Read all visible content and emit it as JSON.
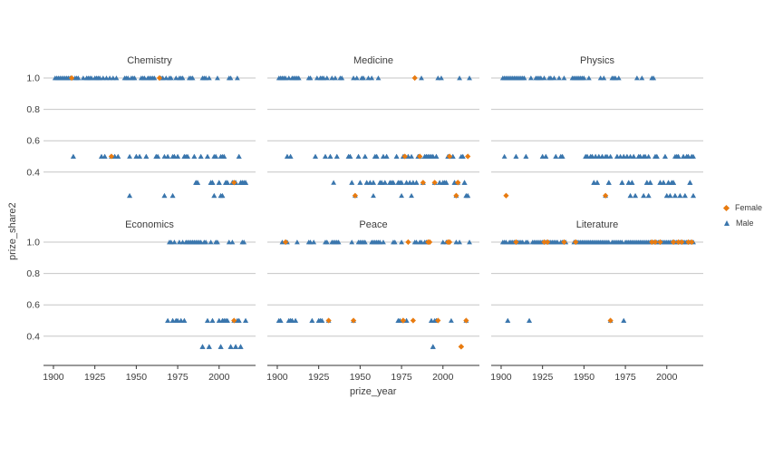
{
  "chart_data": {
    "type": "scatter",
    "title": "",
    "xlabel": "prize_year",
    "ylabel": "prize_share2",
    "x_ticks": [
      1900,
      1925,
      1950,
      1975,
      2000
    ],
    "x_range": [
      1894,
      2022
    ],
    "y_ticks": [
      "1.0",
      "0.8",
      "0.6",
      "0.4"
    ],
    "y_tick_values": [
      1.0,
      0.8,
      0.6,
      0.4
    ],
    "y_gridlines": [
      1.0,
      0.8,
      0.6,
      0.4
    ],
    "grid": "horizontal-only",
    "legend": {
      "position": "right",
      "entries": [
        {
          "label": "Female",
          "color": "#e87b10",
          "shape": "diamond"
        },
        {
          "label": "Male",
          "color": "#3a76ad",
          "shape": "triangle"
        }
      ]
    },
    "facets": [
      {
        "label": "Chemistry",
        "series": [
          {
            "share": 1.0,
            "male": [
              1901,
              1902,
              1903,
              1904,
              1905,
              1906,
              1907,
              1908,
              1909,
              1910,
              1913,
              1914,
              1915,
              1918,
              1920,
              1921,
              1922,
              1923,
              1925,
              1926,
              1927,
              1928,
              1930,
              1932,
              1934,
              1936,
              1938,
              1943,
              1944,
              1945,
              1947,
              1948,
              1949,
              1953,
              1954,
              1955,
              1957,
              1958,
              1959,
              1960,
              1961,
              1965,
              1966,
              1968,
              1970,
              1971,
              1974,
              1976,
              1977,
              1978,
              1982,
              1983,
              1984,
              1990,
              1991,
              1992,
              1994,
              1999,
              2006,
              2007,
              2011
            ],
            "female": [
              1911,
              1964
            ]
          },
          {
            "share": 0.5,
            "male": [
              1912,
              1912,
              1929,
              1929,
              1931,
              1931,
              1935,
              1937,
              1937,
              1939,
              1939,
              1946,
              1950,
              1950,
              1952,
              1952,
              1956,
              1956,
              1962,
              1962,
              1963,
              1963,
              1967,
              1969,
              1969,
              1972,
              1973,
              1973,
              1975,
              1975,
              1979,
              1979,
              1980,
              1981,
              1981,
              1985,
              1985,
              1989,
              1989,
              1993,
              1993,
              1997,
              1998,
              1998,
              2001,
              2002,
              2003,
              2003,
              2012,
              2012
            ],
            "female": [
              1935
            ]
          },
          {
            "share": 0.33,
            "male": [
              1986,
              1986,
              1986,
              1987,
              1987,
              1987,
              1995,
              1995,
              1995,
              1996,
              1996,
              1996,
              2000,
              2000,
              2000,
              2004,
              2004,
              2004,
              2005,
              2005,
              2005,
              2008,
              2008,
              2008,
              2009,
              2009,
              2010,
              2010,
              2010,
              2013,
              2013,
              2013,
              2014,
              2014,
              2014,
              2015,
              2015,
              2015,
              2016,
              2016,
              2016
            ],
            "female": [
              2009
            ]
          },
          {
            "share": 0.25,
            "male": [
              1946,
              1946,
              1967,
              1967,
              1972,
              1972,
              1997,
              1997,
              2001,
              2001,
              2002,
              2002
            ],
            "female": []
          }
        ]
      },
      {
        "label": "Medicine",
        "series": [
          {
            "share": 1.0,
            "male": [
              1901,
              1902,
              1903,
              1904,
              1905,
              1907,
              1909,
              1910,
              1911,
              1912,
              1913,
              1919,
              1920,
              1924,
              1926,
              1927,
              1928,
              1930,
              1933,
              1935,
              1938,
              1939,
              1946,
              1948,
              1951,
              1952,
              1955,
              1957,
              1961,
              1987,
              1997,
              1999,
              2010,
              2016
            ],
            "female": [
              1983
            ]
          },
          {
            "share": 0.5,
            "male": [
              1906,
              1906,
              1908,
              1908,
              1923,
              1923,
              1929,
              1929,
              1932,
              1932,
              1936,
              1936,
              1943,
              1943,
              1944,
              1944,
              1949,
              1949,
              1953,
              1953,
              1959,
              1959,
              1960,
              1960,
              1964,
              1964,
              1966,
              1966,
              1972,
              1972,
              1976,
              1976,
              1979,
              1979,
              1981,
              1985,
              1985,
              1986,
              1989,
              1989,
              1990,
              1990,
              1991,
              1991,
              1992,
              1992,
              1993,
              1993,
              1994,
              1994,
              1996,
              1996,
              2003,
              2003,
              2004,
              2006,
              2006,
              2011,
              2012,
              2012
            ],
            "female": [
              1977,
              1986,
              2004,
              2015
            ]
          },
          {
            "share": 0.33,
            "male": [
              1934,
              1945,
              1945,
              1950,
              1950,
              1954,
              1954,
              1956,
              1956,
              1958,
              1958,
              1962,
              1962,
              1963,
              1963,
              1965,
              1965,
              1968,
              1968,
              1969,
              1969,
              1970,
              1970,
              1973,
              1973,
              1974,
              1974,
              1975,
              1975,
              1978,
              1978,
              1980,
              1980,
              1982,
              1982,
              1984,
              1984,
              1988,
              1988,
              1995,
              1995,
              1998,
              1998,
              2000,
              2000,
              2001,
              2001,
              2002,
              2002,
              2007,
              2007,
              2007,
              2009,
              2013,
              2013,
              2013
            ],
            "female": [
              1988,
              1995,
              2009,
              2009
            ]
          },
          {
            "share": 0.25,
            "male": [
              1947,
              1958,
              1975,
              1981,
              2008,
              2014,
              2014,
              2015,
              2015
            ],
            "female": [
              1947,
              2008
            ]
          }
        ]
      },
      {
        "label": "Physics",
        "series": [
          {
            "share": 1.0,
            "male": [
              1901,
              1902,
              1903,
              1904,
              1905,
              1906,
              1907,
              1908,
              1909,
              1910,
              1911,
              1912,
              1913,
              1914,
              1918,
              1921,
              1922,
              1923,
              1924,
              1926,
              1929,
              1930,
              1932,
              1935,
              1938,
              1943,
              1944,
              1945,
              1946,
              1947,
              1948,
              1949,
              1950,
              1953,
              1960,
              1962,
              1967,
              1968,
              1969,
              1971,
              1982,
              1985,
              1991,
              1992
            ],
            "female": []
          },
          {
            "share": 0.5,
            "male": [
              1902,
              1909,
              1909,
              1915,
              1915,
              1925,
              1925,
              1927,
              1927,
              1933,
              1933,
              1936,
              1936,
              1937,
              1937,
              1951,
              1951,
              1952,
              1952,
              1954,
              1954,
              1955,
              1955,
              1957,
              1957,
              1959,
              1959,
              1961,
              1961,
              1963,
              1964,
              1966,
              1970,
              1970,
              1972,
              1974,
              1974,
              1976,
              1976,
              1978,
              1980,
              1980,
              1983,
              1983,
              1984,
              1984,
              1986,
              1987,
              1987,
              1989,
              1993,
              1993,
              1994,
              1994,
              1999,
              1999,
              2005,
              2006,
              2006,
              2007,
              2007,
              2010,
              2010,
              2012,
              2012,
              2013,
              2013,
              2015,
              2015,
              2016
            ],
            "female": []
          },
          {
            "share": 0.33,
            "male": [
              1956,
              1956,
              1956,
              1958,
              1958,
              1958,
              1965,
              1965,
              1965,
              1973,
              1973,
              1973,
              1977,
              1977,
              1977,
              1979,
              1979,
              1979,
              1988,
              1988,
              1988,
              1990,
              1990,
              1990,
              1996,
              1996,
              1996,
              1998,
              1998,
              1998,
              2001,
              2001,
              2001,
              2003,
              2003,
              2003,
              2004,
              2004,
              2004,
              2014,
              2014,
              2014
            ],
            "female": []
          },
          {
            "share": 0.25,
            "male": [
              1963,
              1978,
              1978,
              1981,
              1981,
              1986,
              1986,
              1989,
              1989,
              2000,
              2000,
              2002,
              2002,
              2005,
              2005,
              2008,
              2008,
              2011,
              2011,
              2016,
              2016
            ],
            "female": [
              1903,
              1963
            ]
          }
        ]
      },
      {
        "label": "Economics",
        "series": [
          {
            "share": 1.0,
            "male": [
              1970,
              1971,
              1973,
              1976,
              1978,
              1980,
              1981,
              1982,
              1983,
              1984,
              1985,
              1986,
              1987,
              1988,
              1989,
              1991,
              1992,
              1995,
              1998,
              1999,
              2006,
              2008,
              2014,
              2015
            ],
            "female": []
          },
          {
            "share": 0.5,
            "male": [
              1969,
              1969,
              1972,
              1972,
              1974,
              1974,
              1975,
              1975,
              1977,
              1977,
              1979,
              1979,
              1993,
              1993,
              1996,
              1996,
              2000,
              2000,
              2002,
              2002,
              2003,
              2003,
              2004,
              2004,
              2005,
              2005,
              2009,
              2011,
              2011,
              2012,
              2012,
              2016,
              2016
            ],
            "female": [
              2009
            ]
          },
          {
            "share": 0.33,
            "male": [
              1990,
              1990,
              1990,
              1994,
              1994,
              1994,
              2001,
              2001,
              2001,
              2007,
              2007,
              2007,
              2010,
              2010,
              2010,
              2013,
              2013,
              2013
            ],
            "female": []
          }
        ]
      },
      {
        "label": "Peace",
        "series": [
          {
            "share": 1.0,
            "male": [
              1903,
              1906,
              1912,
              1919,
              1920,
              1922,
              1929,
              1930,
              1933,
              1934,
              1935,
              1936,
              1937,
              1945,
              1949,
              1950,
              1951,
              1952,
              1953,
              1957,
              1958,
              1959,
              1960,
              1961,
              1962,
              1964,
              1970,
              1971,
              1975,
              1983,
              1984,
              1986,
              1987,
              1989,
              1990,
              2000,
              2002,
              2008,
              2010,
              2016
            ],
            "female": [
              1905,
              1979,
              1991,
              1992,
              2003,
              2004
            ]
          },
          {
            "share": 0.5,
            "male": [
              1901,
              1901,
              1902,
              1902,
              1907,
              1907,
              1908,
              1908,
              1909,
              1909,
              1911,
              1911,
              1921,
              1921,
              1925,
              1925,
              1926,
              1926,
              1927,
              1927,
              1931,
              1946,
              1973,
              1973,
              1974,
              1974,
              1978,
              1978,
              1993,
              1993,
              1995,
              1996,
              1996,
              2005,
              2014
            ],
            "female": [
              1931,
              1946,
              1976,
              1976,
              1982,
              1997,
              2014
            ]
          },
          {
            "share": 0.33,
            "male": [
              1994,
              1994,
              1994
            ],
            "female": [
              2011,
              2011,
              2011
            ]
          }
        ]
      },
      {
        "label": "Literature",
        "series": [
          {
            "share": 1.0,
            "male": [
              1901,
              1902,
              1903,
              1905,
              1906,
              1907,
              1908,
              1910,
              1911,
              1912,
              1913,
              1915,
              1916,
              1919,
              1920,
              1921,
              1922,
              1923,
              1924,
              1925,
              1927,
              1929,
              1930,
              1931,
              1932,
              1933,
              1934,
              1936,
              1937,
              1939,
              1944,
              1946,
              1947,
              1948,
              1949,
              1950,
              1951,
              1952,
              1953,
              1954,
              1955,
              1956,
              1957,
              1958,
              1959,
              1960,
              1961,
              1962,
              1963,
              1964,
              1965,
              1967,
              1968,
              1969,
              1970,
              1971,
              1972,
              1973,
              1975,
              1976,
              1977,
              1978,
              1979,
              1980,
              1981,
              1982,
              1983,
              1984,
              1985,
              1986,
              1987,
              1988,
              1989,
              1990,
              1992,
              1994,
              1995,
              1997,
              1998,
              1999,
              2000,
              2001,
              2002,
              2003,
              2005,
              2006,
              2008,
              2010,
              2011,
              2012,
              2014,
              2016
            ],
            "female": [
              1909,
              1926,
              1928,
              1938,
              1945,
              1991,
              1993,
              1996,
              2004,
              2007,
              2009,
              2013,
              2015
            ]
          },
          {
            "share": 0.5,
            "male": [
              1904,
              1904,
              1917,
              1917,
              1966,
              1974,
              1974
            ],
            "female": [
              1966
            ]
          }
        ]
      }
    ]
  }
}
